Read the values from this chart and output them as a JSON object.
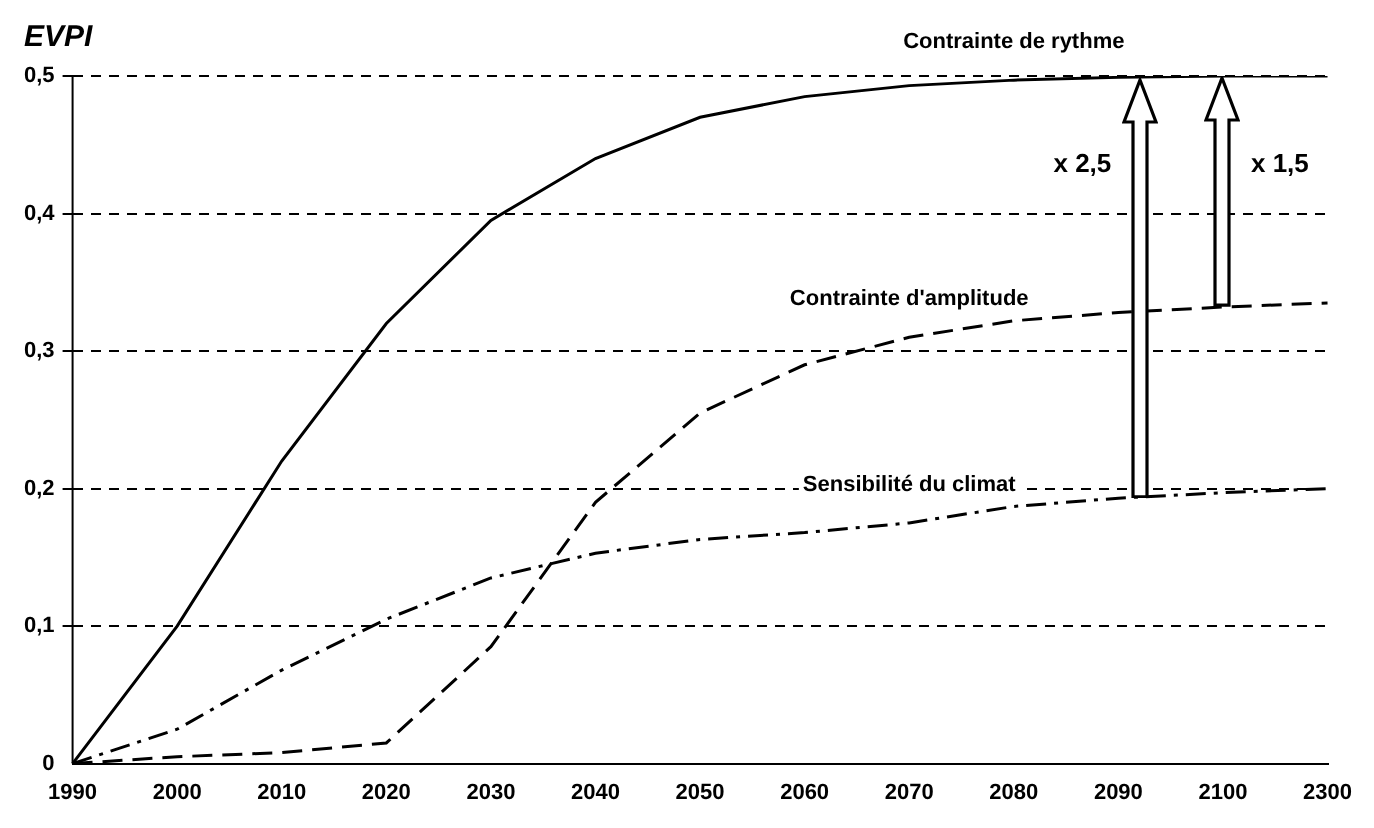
{
  "chart_data": {
    "type": "line",
    "ylabel": "EVPI",
    "categories": [
      "1990",
      "2000",
      "2010",
      "2020",
      "2030",
      "2040",
      "2050",
      "2060",
      "2070",
      "2080",
      "2090",
      "2100",
      "2300"
    ],
    "series": [
      {
        "name": "Contrainte de rythme",
        "color": "#000000",
        "line_style": "solid",
        "values": [
          0,
          0.1,
          0.22,
          0.32,
          0.395,
          0.44,
          0.47,
          0.485,
          0.493,
          0.497,
          0.499,
          0.5,
          0.5
        ]
      },
      {
        "name": "Contrainte d'amplitude",
        "color": "#000000",
        "line_style": "dashed",
        "values": [
          0,
          0.005,
          0.008,
          0.015,
          0.085,
          0.19,
          0.255,
          0.29,
          0.31,
          0.322,
          0.328,
          0.332,
          0.335
        ]
      },
      {
        "name": "Sensibilité du climat",
        "color": "#000000",
        "line_style": "dotted",
        "values": [
          0,
          0.025,
          0.068,
          0.105,
          0.135,
          0.153,
          0.163,
          0.168,
          0.175,
          0.187,
          0.193,
          0.197,
          0.2
        ]
      }
    ],
    "ylim": [
      0,
      0.5
    ],
    "yticks": [
      0,
      {
        "value": 0.1,
        "label": "0,1"
      },
      {
        "value": 0.2,
        "label": "0,2"
      },
      {
        "value": 0.3,
        "label": "0,3"
      },
      {
        "value": 0.4,
        "label": "0,4"
      },
      {
        "value": 0.5,
        "label": "0,5"
      }
    ],
    "grid": "y",
    "legend": false,
    "marker": "none",
    "annotations": [
      "x 2,5",
      "x 1,5"
    ]
  }
}
